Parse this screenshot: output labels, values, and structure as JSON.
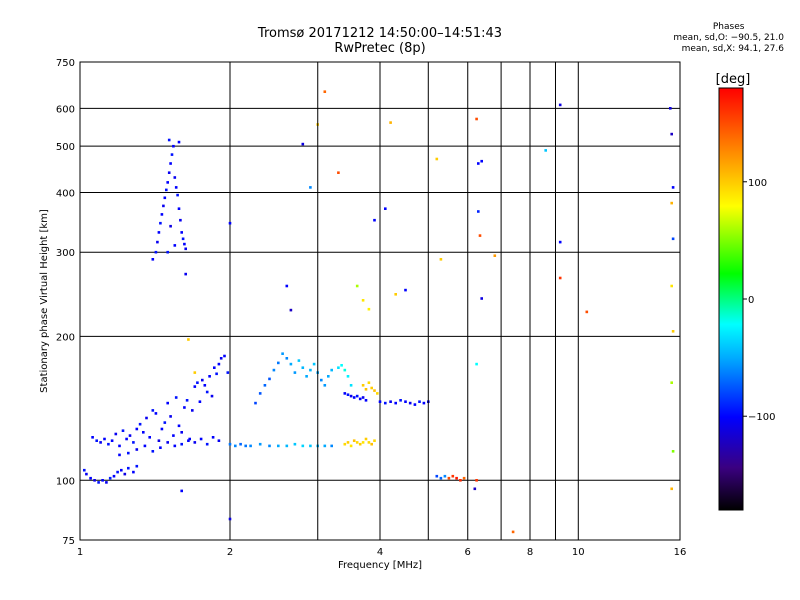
{
  "header": {
    "title_line1": "Tromsø 20171212 14:50:00–14:51:43",
    "title_line2": "RwPretec (8p)"
  },
  "phase_info": {
    "title": "Phases",
    "line1": "mean, sd,O: −90.5, 21.0",
    "line2": "mean, sd,X:  94.1, 27.6"
  },
  "colorbar": {
    "label": "[deg]",
    "ticks": [
      "100",
      "0",
      "−100"
    ],
    "tick_values": [
      100,
      0,
      -100
    ],
    "range": [
      -180,
      180
    ]
  },
  "chart_data": {
    "type": "scatter",
    "xlabel": "Frequency [MHz]",
    "ylabel": "Stationary phase Virtual Height [km]",
    "x_scale": "log",
    "y_scale": "log",
    "xlim": [
      1,
      16
    ],
    "ylim": [
      75,
      750
    ],
    "x_ticks": [
      1,
      2,
      4,
      6,
      8,
      10,
      16
    ],
    "x_tick_labels": [
      "1",
      "2",
      "4",
      "6",
      "8",
      "10",
      "16"
    ],
    "x_minor_ticks": [
      3,
      5,
      7,
      9
    ],
    "y_ticks": [
      75,
      100,
      200,
      300,
      400,
      500,
      600,
      750
    ],
    "y_tick_labels": [
      "75",
      "100",
      "200",
      "300",
      "400",
      "500",
      "600",
      "750"
    ],
    "grid": true,
    "series": [
      {
        "points": [
          [
            1.02,
            105,
            -95
          ],
          [
            1.03,
            103,
            -105
          ],
          [
            1.05,
            101,
            -100
          ],
          [
            1.07,
            100,
            -110
          ],
          [
            1.09,
            99,
            -95
          ],
          [
            1.11,
            100,
            -100
          ],
          [
            1.13,
            99,
            -105
          ],
          [
            1.15,
            101,
            -90
          ],
          [
            1.17,
            102,
            -100
          ],
          [
            1.19,
            104,
            -95
          ],
          [
            1.21,
            105,
            -100
          ],
          [
            1.23,
            103,
            -110
          ],
          [
            1.25,
            106,
            -95
          ],
          [
            1.28,
            104,
            -100
          ],
          [
            1.3,
            107,
            -95
          ],
          [
            1.06,
            123,
            -100
          ],
          [
            1.08,
            121,
            -95
          ],
          [
            1.1,
            120,
            -105
          ],
          [
            1.12,
            122,
            -100
          ],
          [
            1.14,
            119,
            -95
          ],
          [
            1.16,
            121,
            -100
          ],
          [
            1.18,
            125,
            -105
          ],
          [
            1.2,
            118,
            -100
          ],
          [
            1.22,
            127,
            -95
          ],
          [
            1.24,
            122,
            -100
          ],
          [
            1.26,
            124,
            -105
          ],
          [
            1.28,
            120,
            -95
          ],
          [
            1.3,
            128,
            -100
          ],
          [
            1.32,
            131,
            -95
          ],
          [
            1.34,
            126,
            -100
          ],
          [
            1.36,
            135,
            -105
          ],
          [
            1.38,
            123,
            -100
          ],
          [
            1.4,
            140,
            -95
          ],
          [
            1.42,
            138,
            -100
          ],
          [
            1.44,
            121,
            -110
          ],
          [
            1.46,
            128,
            -100
          ],
          [
            1.48,
            132,
            -95
          ],
          [
            1.5,
            145,
            -100
          ],
          [
            1.52,
            136,
            -105
          ],
          [
            1.54,
            124,
            -100
          ],
          [
            1.56,
            149,
            -95
          ],
          [
            1.58,
            130,
            -100
          ],
          [
            1.6,
            126,
            -105
          ],
          [
            1.62,
            142,
            -100
          ],
          [
            1.64,
            147,
            -95
          ],
          [
            1.66,
            122,
            -100
          ],
          [
            1.68,
            140,
            -105
          ],
          [
            1.7,
            157,
            -100
          ],
          [
            1.72,
            160,
            -95
          ],
          [
            1.74,
            146,
            -100
          ],
          [
            1.76,
            162,
            -105
          ],
          [
            1.78,
            158,
            -100
          ],
          [
            1.8,
            153,
            -95
          ],
          [
            1.82,
            165,
            -100
          ],
          [
            1.84,
            150,
            -105
          ],
          [
            1.86,
            172,
            -100
          ],
          [
            1.88,
            167,
            -95
          ],
          [
            1.9,
            175,
            -100
          ],
          [
            1.92,
            180,
            -105
          ],
          [
            1.95,
            182,
            -100
          ],
          [
            1.98,
            168,
            -95
          ],
          [
            1.2,
            113,
            -100
          ],
          [
            1.25,
            114,
            -95
          ],
          [
            1.3,
            116,
            -105
          ],
          [
            1.35,
            118,
            -100
          ],
          [
            1.4,
            115,
            -95
          ],
          [
            1.45,
            117,
            -100
          ],
          [
            1.5,
            120,
            -105
          ],
          [
            1.55,
            118,
            -100
          ],
          [
            1.6,
            119,
            -95
          ],
          [
            1.65,
            121,
            -100
          ],
          [
            1.7,
            120,
            -105
          ],
          [
            1.75,
            122,
            -100
          ],
          [
            1.8,
            119,
            -95
          ],
          [
            1.85,
            123,
            -100
          ],
          [
            1.9,
            121,
            -105
          ],
          [
            1.4,
            290,
            -100
          ],
          [
            1.42,
            300,
            -95
          ],
          [
            1.43,
            315,
            -105
          ],
          [
            1.44,
            330,
            -100
          ],
          [
            1.45,
            345,
            -95
          ],
          [
            1.46,
            360,
            -100
          ],
          [
            1.47,
            375,
            -105
          ],
          [
            1.48,
            390,
            -100
          ],
          [
            1.49,
            405,
            -95
          ],
          [
            1.5,
            420,
            -100
          ],
          [
            1.51,
            440,
            -105
          ],
          [
            1.52,
            460,
            -100
          ],
          [
            1.53,
            480,
            -95
          ],
          [
            1.54,
            500,
            -100
          ],
          [
            1.55,
            430,
            -105
          ],
          [
            1.56,
            410,
            -100
          ],
          [
            1.57,
            395,
            -95
          ],
          [
            1.58,
            370,
            -100
          ],
          [
            1.59,
            350,
            -105
          ],
          [
            1.6,
            330,
            -100
          ],
          [
            1.61,
            320,
            -95
          ],
          [
            1.62,
            312,
            -100
          ],
          [
            1.63,
            305,
            -105
          ],
          [
            1.51,
            515,
            -95
          ],
          [
            1.58,
            510,
            -100
          ],
          [
            1.52,
            340,
            -110
          ],
          [
            1.55,
            310,
            -100
          ],
          [
            1.5,
            300,
            -95
          ],
          [
            1.63,
            270,
            -105
          ],
          [
            2.0,
            119,
            -65
          ],
          [
            2.05,
            118,
            -60
          ],
          [
            2.1,
            119,
            -70
          ],
          [
            2.15,
            118,
            -65
          ],
          [
            2.2,
            118,
            -60
          ],
          [
            2.3,
            119,
            -55
          ],
          [
            2.4,
            118,
            -60
          ],
          [
            2.5,
            118,
            -50
          ],
          [
            2.6,
            118,
            -45
          ],
          [
            2.7,
            119,
            -40
          ],
          [
            2.8,
            118,
            -35
          ],
          [
            2.9,
            118,
            -40
          ],
          [
            3.0,
            118,
            -45
          ],
          [
            3.1,
            118,
            -50
          ],
          [
            3.2,
            118,
            -60
          ],
          [
            2.25,
            145,
            -80
          ],
          [
            2.3,
            152,
            -75
          ],
          [
            2.35,
            158,
            -70
          ],
          [
            2.4,
            163,
            -75
          ],
          [
            2.45,
            170,
            -60
          ],
          [
            2.5,
            176,
            -65
          ],
          [
            2.55,
            184,
            -55
          ],
          [
            2.6,
            180,
            -60
          ],
          [
            2.65,
            175,
            -50
          ],
          [
            2.7,
            168,
            -55
          ],
          [
            2.75,
            178,
            -40
          ],
          [
            2.8,
            172,
            -45
          ],
          [
            2.85,
            165,
            -50
          ],
          [
            2.9,
            170,
            -45
          ],
          [
            2.95,
            175,
            -40
          ],
          [
            3.0,
            168,
            -50
          ],
          [
            3.05,
            162,
            -60
          ],
          [
            3.1,
            158,
            -55
          ],
          [
            3.15,
            165,
            -50
          ],
          [
            3.2,
            170,
            -45
          ],
          [
            3.3,
            172,
            -30
          ],
          [
            3.35,
            174,
            -20
          ],
          [
            3.4,
            170,
            -15
          ],
          [
            3.45,
            165,
            -25
          ],
          [
            3.5,
            158,
            -30
          ],
          [
            3.4,
            152,
            -100
          ],
          [
            3.45,
            151,
            -95
          ],
          [
            3.5,
            150,
            -105
          ],
          [
            3.55,
            149,
            -100
          ],
          [
            3.6,
            150,
            -95
          ],
          [
            3.65,
            148,
            -100
          ],
          [
            3.7,
            149,
            -105
          ],
          [
            3.75,
            147,
            -100
          ],
          [
            3.4,
            119,
            95
          ],
          [
            3.45,
            120,
            100
          ],
          [
            3.5,
            118,
            90
          ],
          [
            3.55,
            121,
            105
          ],
          [
            3.6,
            120,
            95
          ],
          [
            3.65,
            119,
            100
          ],
          [
            3.7,
            120,
            90
          ],
          [
            3.75,
            122,
            100
          ],
          [
            3.8,
            120,
            95
          ],
          [
            3.85,
            119,
            105
          ],
          [
            3.9,
            121,
            95
          ],
          [
            3.7,
            158,
            100
          ],
          [
            3.75,
            155,
            105
          ],
          [
            3.8,
            160,
            95
          ],
          [
            3.85,
            156,
            100
          ],
          [
            3.9,
            154,
            105
          ],
          [
            3.95,
            152,
            95
          ],
          [
            4.0,
            146,
            -100
          ],
          [
            4.1,
            145,
            -95
          ],
          [
            4.2,
            146,
            -105
          ],
          [
            4.3,
            145,
            -100
          ],
          [
            4.4,
            147,
            -95
          ],
          [
            4.5,
            146,
            -100
          ],
          [
            4.6,
            145,
            -105
          ],
          [
            4.7,
            144,
            -100
          ],
          [
            4.8,
            146,
            -95
          ],
          [
            4.9,
            145,
            -100
          ],
          [
            5.0,
            146,
            -105
          ],
          [
            5.2,
            102,
            -80
          ],
          [
            5.3,
            101,
            -70
          ],
          [
            5.4,
            102,
            -60
          ],
          [
            5.5,
            101,
            150
          ],
          [
            5.6,
            102,
            160
          ],
          [
            5.7,
            101,
            170
          ],
          [
            5.8,
            100,
            165
          ],
          [
            5.9,
            101,
            140
          ],
          [
            6.25,
            570,
            150
          ],
          [
            6.3,
            460,
            -100
          ],
          [
            6.4,
            465,
            -100
          ],
          [
            6.3,
            365,
            -90
          ],
          [
            6.35,
            325,
            150
          ],
          [
            6.4,
            240,
            -110
          ],
          [
            6.25,
            100,
            160
          ],
          [
            6.2,
            96,
            -120
          ],
          [
            6.25,
            175,
            -20
          ],
          [
            2.0,
            345,
            -100
          ],
          [
            2.0,
            83,
            -110
          ],
          [
            2.6,
            255,
            -100
          ],
          [
            2.65,
            227,
            -120
          ],
          [
            2.8,
            505,
            -110
          ],
          [
            2.9,
            410,
            -60
          ],
          [
            3.0,
            555,
            100
          ],
          [
            3.1,
            650,
            140
          ],
          [
            3.3,
            440,
            150
          ],
          [
            3.6,
            255,
            60
          ],
          [
            3.7,
            238,
            90
          ],
          [
            3.8,
            228,
            85
          ],
          [
            3.9,
            350,
            -100
          ],
          [
            4.1,
            370,
            -100
          ],
          [
            4.2,
            560,
            110
          ],
          [
            4.3,
            245,
            100
          ],
          [
            4.5,
            250,
            -100
          ],
          [
            5.2,
            470,
            100
          ],
          [
            5.3,
            290,
            100
          ],
          [
            6.8,
            295,
            120
          ],
          [
            7.4,
            78,
            140
          ],
          [
            8.6,
            490,
            -40
          ],
          [
            9.2,
            610,
            -110
          ],
          [
            9.2,
            315,
            -100
          ],
          [
            9.2,
            265,
            160
          ],
          [
            10.4,
            225,
            150
          ],
          [
            15.3,
            600,
            -110
          ],
          [
            15.4,
            530,
            -120
          ],
          [
            15.5,
            410,
            -100
          ],
          [
            15.4,
            380,
            110
          ],
          [
            15.5,
            320,
            -80
          ],
          [
            15.4,
            255,
            90
          ],
          [
            15.5,
            205,
            100
          ],
          [
            15.4,
            160,
            60
          ],
          [
            15.5,
            115,
            50
          ],
          [
            15.4,
            96,
            110
          ],
          [
            1.6,
            95,
            -100
          ],
          [
            1.65,
            197,
            100
          ],
          [
            1.7,
            168,
            100
          ]
        ]
      }
    ]
  }
}
